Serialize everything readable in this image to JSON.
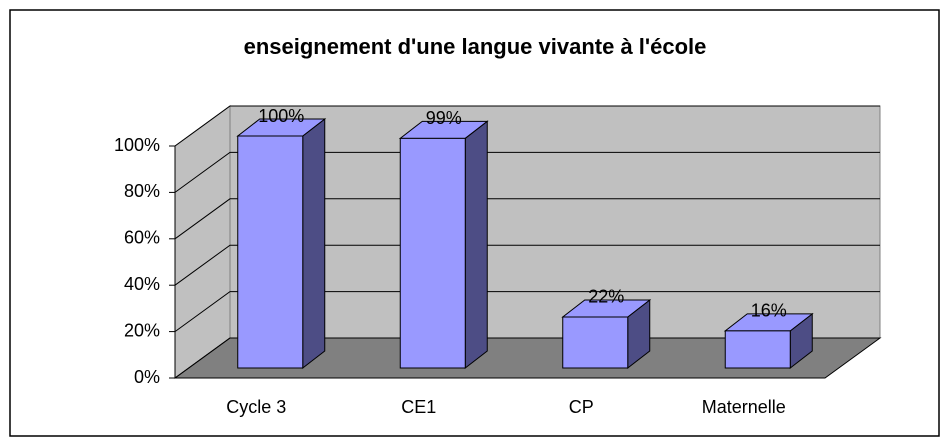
{
  "chart_data": {
    "type": "bar3d",
    "title": "enseignement d'une langue vivante à l'école",
    "categories": [
      "Cycle 3",
      "CE1",
      "CP",
      "Maternelle"
    ],
    "values": [
      100,
      99,
      22,
      16
    ],
    "value_labels": [
      "100%",
      "99%",
      "22%",
      "16%"
    ],
    "color": "#9999ff",
    "ylim": [
      0,
      100
    ],
    "yticks": [
      {
        "value": 0,
        "label": "0%"
      },
      {
        "value": 20,
        "label": "20%"
      },
      {
        "value": 40,
        "label": "40%"
      },
      {
        "value": 60,
        "label": "60%"
      },
      {
        "value": 80,
        "label": "80%"
      },
      {
        "value": 100,
        "label": "100%"
      }
    ],
    "grid": true
  }
}
